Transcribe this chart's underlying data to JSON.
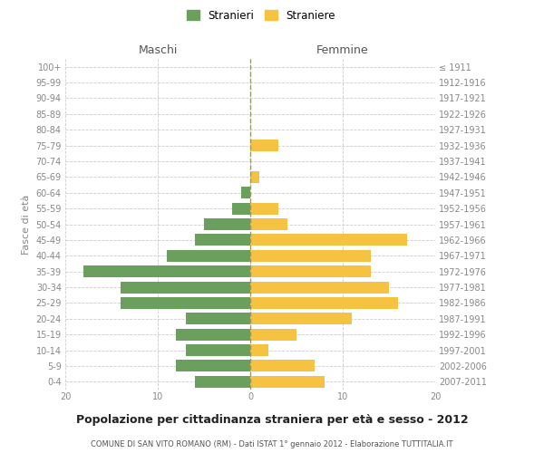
{
  "age_groups": [
    "100+",
    "95-99",
    "90-94",
    "85-89",
    "80-84",
    "75-79",
    "70-74",
    "65-69",
    "60-64",
    "55-59",
    "50-54",
    "45-49",
    "40-44",
    "35-39",
    "30-34",
    "25-29",
    "20-24",
    "15-19",
    "10-14",
    "5-9",
    "0-4"
  ],
  "birth_years": [
    "≤ 1911",
    "1912-1916",
    "1917-1921",
    "1922-1926",
    "1927-1931",
    "1932-1936",
    "1937-1941",
    "1942-1946",
    "1947-1951",
    "1952-1956",
    "1957-1961",
    "1962-1966",
    "1967-1971",
    "1972-1976",
    "1977-1981",
    "1982-1986",
    "1987-1991",
    "1992-1996",
    "1997-2001",
    "2002-2006",
    "2007-2011"
  ],
  "maschi": [
    0,
    0,
    0,
    0,
    0,
    0,
    0,
    0,
    1,
    2,
    5,
    6,
    9,
    18,
    14,
    14,
    7,
    8,
    7,
    8,
    6
  ],
  "femmine": [
    0,
    0,
    0,
    0,
    0,
    3,
    0,
    1,
    0,
    3,
    4,
    17,
    13,
    13,
    15,
    16,
    11,
    5,
    2,
    7,
    8
  ],
  "maschi_color": "#6a9f5e",
  "femmine_color": "#f5c242",
  "background_color": "#ffffff",
  "grid_color": "#cccccc",
  "title": "Popolazione per cittadinanza straniera per età e sesso - 2012",
  "subtitle": "COMUNE DI SAN VITO ROMANO (RM) - Dati ISTAT 1° gennaio 2012 - Elaborazione TUTTITALIA.IT",
  "ylabel_left": "Fasce di età",
  "xlabel_maschi": "Maschi",
  "xlabel_femmine": "Femmine",
  "legend_stranieri": "Stranieri",
  "legend_straniere": "Straniere",
  "xlim": 20,
  "bar_height": 0.75
}
